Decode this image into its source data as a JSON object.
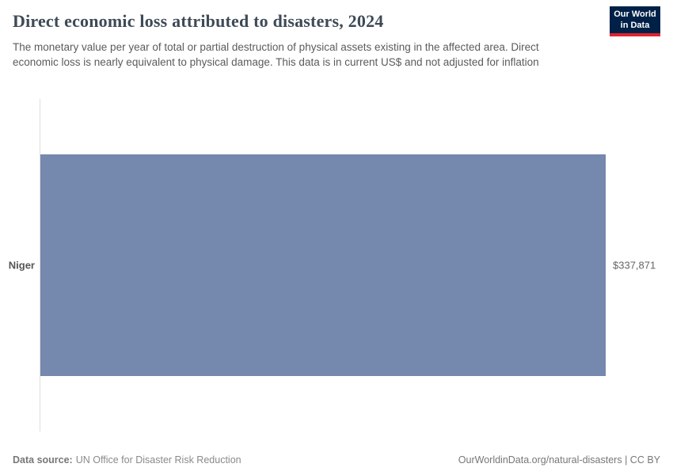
{
  "header": {
    "title": "Direct economic loss attributed to disasters, 2024",
    "subtitle": "The monetary value per year of total or partial destruction of physical assets existing in the affected area. Direct economic loss is nearly equivalent to physical damage. This data is in current US$ and not adjusted for inflation",
    "logo": {
      "line1": "Our World",
      "line2": "in Data"
    }
  },
  "chart_data": {
    "type": "bar",
    "orientation": "horizontal",
    "title": "Direct economic loss attributed to disasters, 2024",
    "categories": [
      "Niger"
    ],
    "values": [
      337871
    ],
    "value_labels": [
      "$337,871"
    ],
    "xlabel": "",
    "ylabel": "",
    "xlim": [
      0,
      337871
    ],
    "unit": "current US$",
    "grid": false,
    "legend": "none"
  },
  "colors": {
    "bar": "#7588ae",
    "logo_background": "#002147",
    "logo_accent": "#e0232e"
  },
  "footer": {
    "source_label": "Data source:",
    "source_text": "UN Office for Disaster Risk Reduction",
    "credit": "OurWorldinData.org/natural-disasters | CC BY"
  }
}
